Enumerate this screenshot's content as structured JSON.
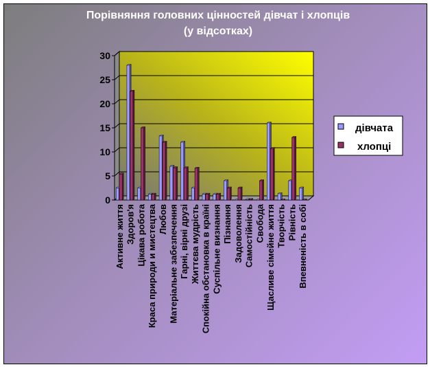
{
  "chart_data": {
    "type": "bar",
    "title": "Порівняння головних цінностей дівчат і хлопців",
    "subtitle": "(у відсотках)",
    "xlabel": "",
    "ylabel": "",
    "ylim": [
      0,
      30
    ],
    "yticks": [
      0,
      5,
      10,
      15,
      20,
      25,
      30
    ],
    "grid": true,
    "legend_position": "right",
    "categories": [
      "Активне життя",
      "Здоров'я",
      "Цікава робота",
      "Краса природи и мистецтва",
      "Любов",
      "Матеріальне забезпечення",
      "Гарні, вірні друзі",
      "Життєва мудрість",
      "Спокійна обстановка в країні",
      "Суспільне визнання",
      "Пізнання",
      "Задоволення",
      "Самостійність",
      "Свобода",
      "Щасливе сімейне життя",
      "Творчість",
      "Рівність",
      "Впевненість в собі"
    ],
    "series": [
      {
        "name": "дівчата",
        "color": "#9999ff",
        "values": [
          2.5,
          28,
          2.5,
          1.2,
          13.3,
          7,
          12,
          2.5,
          1.2,
          1.2,
          4,
          0,
          0.1,
          0,
          16,
          1.3,
          4,
          2.5
        ]
      },
      {
        "name": "хлопці",
        "color": "#993366",
        "values": [
          5.4,
          22.6,
          15,
          1.2,
          12,
          6.7,
          6.7,
          6.6,
          1.2,
          1.2,
          2.5,
          2.5,
          0.1,
          4,
          10.7,
          0,
          13,
          0
        ]
      }
    ]
  }
}
